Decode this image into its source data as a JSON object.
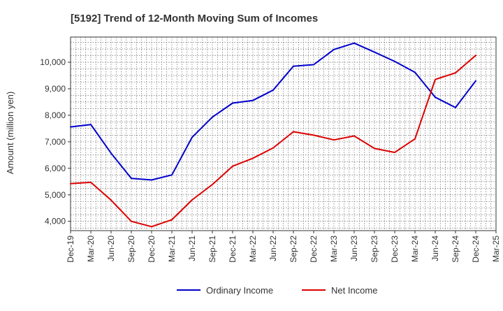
{
  "chart_data": {
    "type": "line",
    "title": "[5192]  Trend of 12-Month Moving Sum of Incomes",
    "xlabel": "",
    "ylabel": "Amount (million yen)",
    "ylim": [
      3650,
      10950
    ],
    "yticks": [
      4000,
      5000,
      6000,
      7000,
      8000,
      9000,
      10000
    ],
    "ytick_labels": [
      "4,000",
      "5,000",
      "6,000",
      "7,000",
      "8,000",
      "9,000",
      "10,000"
    ],
    "categories": [
      "Dec-19",
      "Mar-20",
      "Jun-20",
      "Sep-20",
      "Dec-20",
      "Mar-21",
      "Jun-21",
      "Sep-21",
      "Dec-21",
      "Mar-22",
      "Jun-22",
      "Sep-22",
      "Dec-22",
      "Mar-23",
      "Jun-23",
      "Sep-23",
      "Dec-23",
      "Mar-24",
      "Jun-24",
      "Sep-24",
      "Dec-24",
      "Mar-25"
    ],
    "grid": true,
    "legend_position": "bottom-center",
    "series": [
      {
        "name": "Ordinary Income",
        "color": "#0000cc",
        "values": [
          7560,
          7650,
          6570,
          5620,
          5560,
          5750,
          7170,
          7930,
          8460,
          8560,
          8950,
          9850,
          9910,
          10480,
          10720,
          10380,
          10030,
          9620,
          8680,
          8290,
          9300,
          null
        ]
      },
      {
        "name": "Net Income",
        "color": "#dd0000",
        "values": [
          5420,
          5470,
          4800,
          4000,
          3800,
          4060,
          4810,
          5390,
          6080,
          6380,
          6770,
          7380,
          7250,
          7070,
          7220,
          6750,
          6600,
          7110,
          9350,
          9600,
          10260,
          null
        ]
      }
    ]
  }
}
